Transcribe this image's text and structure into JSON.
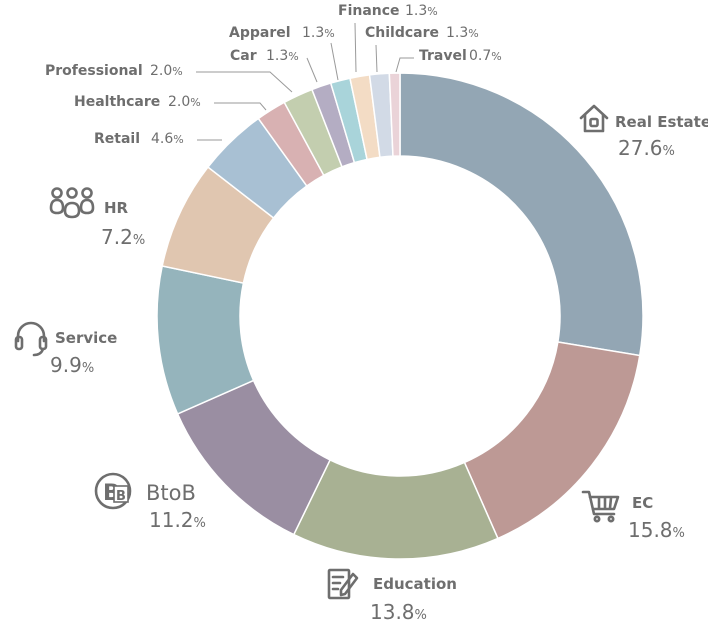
{
  "chart_data": {
    "type": "pie",
    "title": "",
    "variant": "donut",
    "unit": "%",
    "slices": [
      {
        "label": "Real Estate",
        "value": 27.6,
        "value_text": "27.6",
        "color": "#93a6b4",
        "icon": "house-icon"
      },
      {
        "label": "EC",
        "value": 15.8,
        "value_text": "15.8",
        "color": "#bd9995",
        "icon": "shopping-cart-icon"
      },
      {
        "label": "Education",
        "value": 13.8,
        "value_text": "13.8",
        "color": "#a8b193",
        "icon": "document-pen-icon"
      },
      {
        "label": "BtoB",
        "value": 11.2,
        "value_text": "11.2",
        "color": "#9a8ea2",
        "icon": "b-to-b-icon"
      },
      {
        "label": "Service",
        "value": 9.9,
        "value_text": "9.9",
        "color": "#95b4bc",
        "icon": "headset-icon"
      },
      {
        "label": "HR",
        "value": 7.2,
        "value_text": "7.2",
        "color": "#e0c6b0",
        "icon": "people-group-icon"
      },
      {
        "label": "Retail",
        "value": 4.6,
        "value_text": "4.6",
        "color": "#a8c0d3"
      },
      {
        "label": "Healthcare",
        "value": 2.0,
        "value_text": "2.0",
        "color": "#d8b1b2"
      },
      {
        "label": "Professional",
        "value": 2.0,
        "value_text": "2.0",
        "color": "#c3ceaf"
      },
      {
        "label": "Car",
        "value": 1.3,
        "value_text": "1.3",
        "color": "#b4adc3"
      },
      {
        "label": "Apparel",
        "value": 1.3,
        "value_text": "1.3",
        "color": "#a9d4da"
      },
      {
        "label": "Finance",
        "value": 1.3,
        "value_text": "1.3",
        "color": "#f3dcc5"
      },
      {
        "label": "Childcare",
        "value": 1.3,
        "value_text": "1.3",
        "color": "#d2dae6"
      },
      {
        "label": "Travel",
        "value": 0.7,
        "value_text": "0.7",
        "color": "#ead3d8"
      }
    ]
  }
}
